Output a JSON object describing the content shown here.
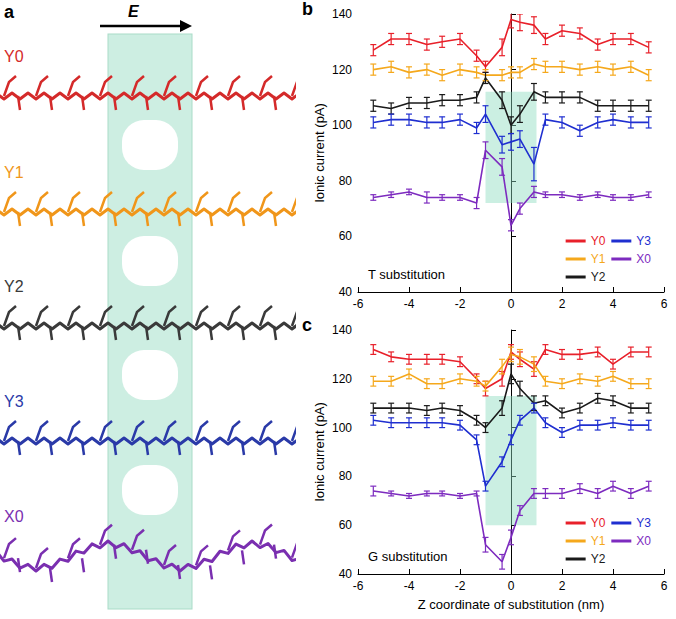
{
  "diagram": {
    "letter": "a",
    "field_label": "E",
    "structures": [
      {
        "label": "Y0",
        "color": "#d42a2a"
      },
      {
        "label": "Y1",
        "color": "#f0961a"
      },
      {
        "label": "Y2",
        "color": "#3a3a3a"
      },
      {
        "label": "Y3",
        "color": "#2a3aa8"
      },
      {
        "label": "X0",
        "color": "#7a2fb0"
      }
    ]
  },
  "chart_data": [
    {
      "type": "line",
      "letter": "b",
      "annotation": "T substitution",
      "y_label": "Ionic current (pA)",
      "x": [
        -5.4,
        -4.7,
        -4.0,
        -3.3,
        -2.7,
        -2.0,
        -1.35,
        -1.0,
        -0.35,
        0,
        0.35,
        0.9,
        1.35,
        2.0,
        2.7,
        3.4,
        4.0,
        4.7,
        5.4
      ],
      "xlim": [
        -6,
        6
      ],
      "xticks": [
        -6,
        -4,
        -2,
        0,
        2,
        4,
        6
      ],
      "ylim": [
        40,
        140
      ],
      "yticks": [
        40,
        60,
        80,
        100,
        120,
        140
      ],
      "legend": "lower right",
      "shaded_band": {
        "x": [
          -1,
          1
        ],
        "y": [
          72,
          112
        ]
      },
      "series": [
        {
          "name": "Y0",
          "color": "#e8202a",
          "values": [
            127,
            131,
            131,
            129,
            130,
            131,
            125,
            121,
            128,
            138,
            137,
            136,
            131,
            134,
            133,
            129,
            131,
            131,
            128
          ],
          "errors": [
            2,
            2,
            2,
            2,
            2,
            2,
            2,
            2,
            3,
            3,
            3,
            3,
            2,
            2,
            2,
            2,
            2,
            2,
            2
          ]
        },
        {
          "name": "Y1",
          "color": "#f5a81c",
          "values": [
            120,
            121,
            119,
            120,
            118,
            120,
            119,
            118,
            118,
            119,
            119,
            122,
            121,
            121,
            120,
            121,
            120,
            121,
            118
          ],
          "errors": [
            2,
            2,
            2,
            2,
            2,
            2,
            2,
            2,
            2,
            2,
            2,
            2,
            2,
            2,
            2,
            2,
            2,
            2,
            2
          ]
        },
        {
          "name": "Y2",
          "color": "#1a1a1a",
          "values": [
            107,
            106,
            108,
            108,
            109,
            109,
            110,
            117,
            109,
            100,
            104,
            112,
            110,
            110,
            110,
            107,
            107,
            107,
            107
          ],
          "errors": [
            2,
            2,
            2,
            2,
            2,
            2,
            2,
            2,
            3,
            3,
            3,
            3,
            2,
            2,
            2,
            2,
            2,
            2,
            2
          ]
        },
        {
          "name": "Y3",
          "color": "#1f2fd0",
          "values": [
            101,
            102,
            102,
            101,
            101,
            102,
            99,
            104,
            93,
            94,
            95,
            86,
            102,
            101,
            98,
            101,
            102,
            101,
            101
          ],
          "errors": [
            2,
            2,
            2,
            2,
            2,
            2,
            2,
            3,
            3,
            3,
            3,
            6,
            2,
            2,
            2,
            2,
            2,
            2,
            2
          ]
        },
        {
          "name": "X0",
          "color": "#7d2bbf",
          "values": [
            74,
            75,
            76,
            74,
            74,
            74,
            72,
            91,
            85,
            64,
            70,
            76,
            75,
            75,
            74,
            75,
            74,
            74,
            75
          ],
          "errors": [
            1,
            1,
            1,
            2,
            1,
            1,
            2,
            3,
            3,
            2,
            2,
            2,
            1,
            1,
            1,
            1,
            1,
            1,
            1
          ]
        }
      ]
    },
    {
      "type": "line",
      "letter": "c",
      "annotation": "G substitution",
      "y_label": "Ionic current (pA)",
      "x_label": "Z coordinate of substitution (nm)",
      "x": [
        -5.4,
        -4.7,
        -4.0,
        -3.3,
        -2.7,
        -2.0,
        -1.35,
        -1.0,
        -0.35,
        0,
        0.35,
        0.9,
        1.35,
        2.0,
        2.7,
        3.4,
        4.0,
        4.7,
        5.4
      ],
      "xlim": [
        -6,
        6
      ],
      "xticks": [
        -6,
        -4,
        -2,
        0,
        2,
        4,
        6
      ],
      "ylim": [
        40,
        140
      ],
      "yticks": [
        40,
        60,
        80,
        100,
        120,
        140
      ],
      "legend": "lower right",
      "shaded_band": {
        "x": [
          -1,
          1
        ],
        "y": [
          60,
          113
        ]
      },
      "series": [
        {
          "name": "Y0",
          "color": "#e8202a",
          "values": [
            132,
            129,
            128,
            128,
            128,
            127,
            120,
            116,
            120,
            131,
            128,
            124,
            132,
            130,
            130,
            131,
            126,
            131,
            131
          ],
          "errors": [
            2,
            2,
            2,
            2,
            2,
            2,
            2,
            3,
            3,
            3,
            3,
            3,
            2,
            2,
            2,
            2,
            2,
            2,
            2
          ]
        },
        {
          "name": "Y1",
          "color": "#f5a81c",
          "values": [
            119,
            119,
            122,
            118,
            118,
            120,
            119,
            117,
            125,
            130,
            129,
            126,
            119,
            118,
            120,
            119,
            121,
            118,
            118
          ],
          "errors": [
            2,
            2,
            2,
            2,
            2,
            2,
            2,
            2,
            3,
            3,
            3,
            3,
            2,
            2,
            2,
            2,
            2,
            2,
            2
          ]
        },
        {
          "name": "Y2",
          "color": "#1a1a1a",
          "values": [
            108,
            108,
            108,
            107,
            108,
            107,
            103,
            100,
            108,
            122,
            116,
            110,
            111,
            106,
            108,
            112,
            111,
            108,
            108
          ],
          "errors": [
            2,
            2,
            2,
            2,
            2,
            2,
            2,
            2,
            3,
            4,
            3,
            3,
            2,
            2,
            2,
            2,
            2,
            2,
            2
          ]
        },
        {
          "name": "Y3",
          "color": "#1f2fd0",
          "values": [
            103,
            102,
            102,
            102,
            102,
            101,
            95,
            76,
            86,
            95,
            103,
            108,
            102,
            98,
            101,
            101,
            102,
            101,
            101
          ],
          "errors": [
            2,
            2,
            2,
            2,
            2,
            2,
            2,
            2,
            2,
            2,
            2,
            2,
            2,
            2,
            2,
            2,
            2,
            2,
            2
          ]
        },
        {
          "name": "X0",
          "color": "#7d2bbf",
          "values": [
            74,
            73,
            72,
            73,
            73,
            72,
            73,
            52,
            45,
            55,
            66,
            73,
            73,
            73,
            75,
            73,
            76,
            73,
            76
          ],
          "errors": [
            2,
            1,
            1,
            1,
            1,
            1,
            1,
            3,
            3,
            3,
            2,
            2,
            2,
            2,
            2,
            2,
            2,
            2,
            2
          ]
        }
      ]
    }
  ]
}
